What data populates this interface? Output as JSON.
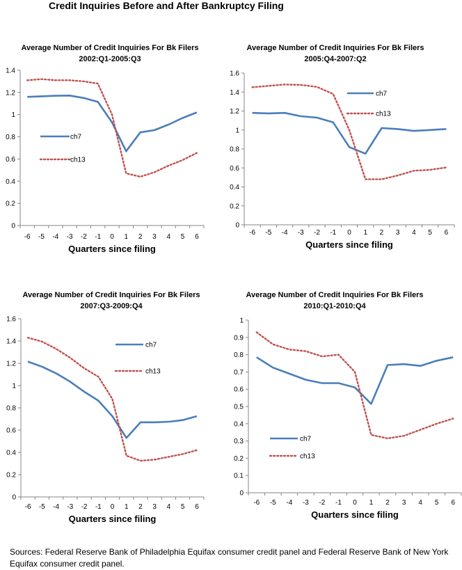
{
  "page": {
    "title": "Credit Inquiries Before and After Bankruptcy Filing",
    "footer": "Sources: Federal Reserve Bank of Philadelphia Equifax consumer credit panel and Federal Reserve Bank of New York Equifax consumer credit panel."
  },
  "colors": {
    "ch7": "#4a7ebb",
    "ch13": "#c0504d"
  },
  "chart_data": [
    {
      "type": "line",
      "title_line1": "Average Number of Credit Inquiries For Bk Filers",
      "title_line2": "2002:Q1-2005:Q3",
      "xlabel": "Quarters since filing",
      "ylabel": "",
      "x": [
        -6,
        -5,
        -4,
        -3,
        -2,
        -1,
        0,
        1,
        2,
        3,
        4,
        5,
        6
      ],
      "ylim": [
        0,
        1.4
      ],
      "yticks": [
        "0",
        "0.2",
        "0.4",
        "0.6",
        "0.8",
        "1",
        "1.2",
        "1.4"
      ],
      "yticks_values": [
        0,
        0.2,
        0.4,
        0.6,
        0.8,
        1,
        1.2,
        1.4
      ],
      "legend_ch7": "ch7",
      "legend_ch13": "ch13",
      "legend_placement": "left-middle",
      "series": [
        {
          "name": "ch7",
          "values": [
            1.16,
            1.165,
            1.17,
            1.172,
            1.15,
            1.115,
            0.93,
            0.67,
            0.84,
            0.86,
            0.91,
            0.97,
            1.02
          ]
        },
        {
          "name": "ch13",
          "values": [
            1.31,
            1.32,
            1.31,
            1.31,
            1.3,
            1.28,
            1.0,
            0.47,
            0.44,
            0.48,
            0.54,
            0.59,
            0.655
          ]
        }
      ]
    },
    {
      "type": "line",
      "title_line1": "Average Number of Credit Inquiries For Bk Filers",
      "title_line2": "2005:Q4-2007:Q2",
      "xlabel": "Quarters since filing",
      "ylabel": "",
      "x": [
        -6,
        -5,
        -4,
        -3,
        -2,
        -1,
        0,
        1,
        2,
        3,
        4,
        5,
        6
      ],
      "ylim": [
        0,
        1.6
      ],
      "yticks": [
        "0",
        "0.2",
        "0.4",
        "0.6",
        "0.8",
        "1",
        "1.2",
        "1.4",
        "1.6"
      ],
      "yticks_values": [
        0,
        0.2,
        0.4,
        0.6,
        0.8,
        1,
        1.2,
        1.4,
        1.6
      ],
      "legend_ch7": "ch7",
      "legend_ch13": "ch13",
      "legend_placement": "top-right",
      "series": [
        {
          "name": "ch7",
          "values": [
            1.18,
            1.175,
            1.18,
            1.145,
            1.13,
            1.08,
            0.82,
            0.75,
            1.02,
            1.01,
            0.99,
            1.0,
            1.01
          ]
        },
        {
          "name": "ch13",
          "values": [
            1.45,
            1.465,
            1.48,
            1.475,
            1.455,
            1.38,
            1.0,
            0.48,
            0.48,
            0.52,
            0.57,
            0.58,
            0.605
          ]
        }
      ]
    },
    {
      "type": "line",
      "title_line1": "Average Number of Credit Inquiries For Bk Filers",
      "title_line2": "2007:Q3-2009:Q4",
      "xlabel": "Quarters since filing",
      "ylabel": "",
      "x": [
        -6,
        -5,
        -4,
        -3,
        -2,
        -1,
        0,
        1,
        2,
        3,
        4,
        5,
        6
      ],
      "ylim": [
        0,
        1.6
      ],
      "yticks": [
        "0",
        "0.2",
        "0.4",
        "0.6",
        "0.8",
        "1",
        "1.2",
        "1.4",
        "1.6"
      ],
      "yticks_values": [
        0,
        0.2,
        0.4,
        0.6,
        0.8,
        1,
        1.2,
        1.4,
        1.6
      ],
      "legend_ch7": "ch7",
      "legend_ch13": "ch13",
      "legend_placement": "top-right",
      "series": [
        {
          "name": "ch7",
          "values": [
            1.215,
            1.17,
            1.11,
            1.035,
            0.945,
            0.865,
            0.725,
            0.53,
            0.67,
            0.67,
            0.675,
            0.69,
            0.725
          ]
        },
        {
          "name": "ch13",
          "values": [
            1.43,
            1.395,
            1.33,
            1.25,
            1.155,
            1.08,
            0.88,
            0.37,
            0.325,
            0.335,
            0.36,
            0.385,
            0.42
          ]
        }
      ]
    },
    {
      "type": "line",
      "title_line1": "Average Number of Credit Inquiries For Bk Filers",
      "title_line2": "2010:Q1-2010:Q4",
      "xlabel": "Quarters since filing",
      "ylabel": "",
      "x": [
        -6,
        -5,
        -4,
        -3,
        -2,
        -1,
        0,
        1,
        2,
        3,
        4,
        5,
        6
      ],
      "ylim": [
        0,
        1
      ],
      "yticks": [
        "0",
        "0.1",
        "0.2",
        "0.3",
        "0.4",
        "0.5",
        "0.6",
        "0.7",
        "0.8",
        "0.9",
        "1"
      ],
      "yticks_values": [
        0,
        0.1,
        0.2,
        0.3,
        0.4,
        0.5,
        0.6,
        0.7,
        0.8,
        0.9,
        1
      ],
      "legend_ch7": "ch7",
      "legend_ch13": "ch13",
      "legend_placement": "bottom-left",
      "series": [
        {
          "name": "ch7",
          "values": [
            0.785,
            0.725,
            0.69,
            0.655,
            0.635,
            0.635,
            0.61,
            0.515,
            0.74,
            0.745,
            0.735,
            0.765,
            0.785
          ]
        },
        {
          "name": "ch13",
          "values": [
            0.93,
            0.86,
            0.83,
            0.82,
            0.79,
            0.8,
            0.7,
            0.335,
            0.315,
            0.33,
            0.365,
            0.4,
            0.43
          ]
        }
      ]
    }
  ]
}
